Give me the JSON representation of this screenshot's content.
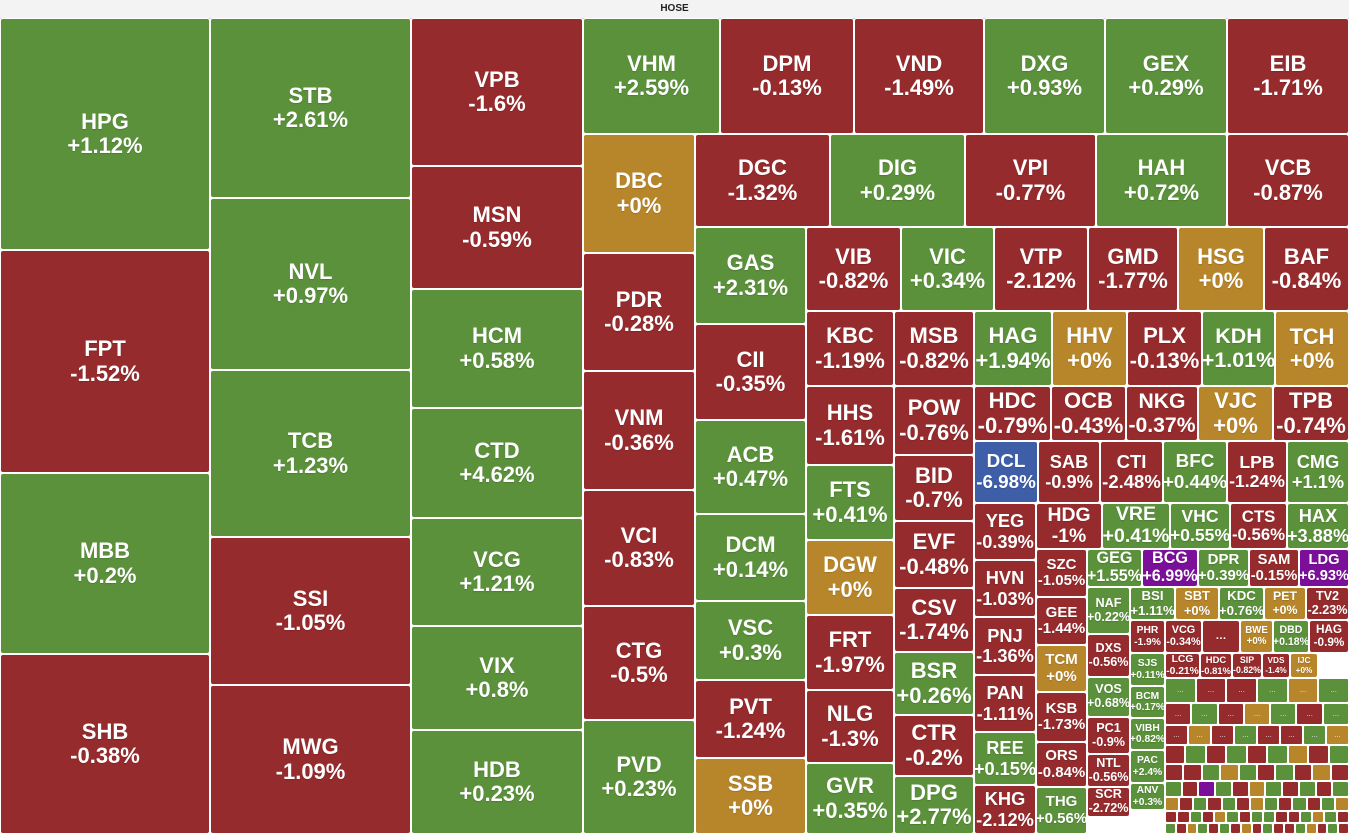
{
  "exchange": "HOSE",
  "colors": {
    "up": "#5b913b",
    "down": "#962b2d",
    "flat": "#b8862a",
    "floor": "#3e5ea8",
    "ceiling": "#7b0f9a"
  },
  "chart_data": {
    "type": "treemap",
    "items": [
      {
        "ticker": "HPG",
        "change": "+1.12%",
        "status": "up"
      },
      {
        "ticker": "FPT",
        "change": "-1.52%",
        "status": "down"
      },
      {
        "ticker": "MBB",
        "change": "+0.2%",
        "status": "up"
      },
      {
        "ticker": "SHB",
        "change": "-0.38%",
        "status": "down"
      },
      {
        "ticker": "STB",
        "change": "+2.61%",
        "status": "up"
      },
      {
        "ticker": "NVL",
        "change": "+0.97%",
        "status": "up"
      },
      {
        "ticker": "TCB",
        "change": "+1.23%",
        "status": "up"
      },
      {
        "ticker": "SSI",
        "change": "-1.05%",
        "status": "down"
      },
      {
        "ticker": "MWG",
        "change": "-1.09%",
        "status": "down"
      },
      {
        "ticker": "VPB",
        "change": "-1.6%",
        "status": "down"
      },
      {
        "ticker": "MSN",
        "change": "-0.59%",
        "status": "down"
      },
      {
        "ticker": "HCM",
        "change": "+0.58%",
        "status": "up"
      },
      {
        "ticker": "CTD",
        "change": "+4.62%",
        "status": "up"
      },
      {
        "ticker": "VCG",
        "change": "+1.21%",
        "status": "up"
      },
      {
        "ticker": "VIX",
        "change": "+0.8%",
        "status": "up"
      },
      {
        "ticker": "HDB",
        "change": "+0.23%",
        "status": "up"
      },
      {
        "ticker": "VHM",
        "change": "+2.59%",
        "status": "up"
      },
      {
        "ticker": "DBC",
        "change": "+0%",
        "status": "flat"
      },
      {
        "ticker": "PDR",
        "change": "-0.28%",
        "status": "down"
      },
      {
        "ticker": "VNM",
        "change": "-0.36%",
        "status": "down"
      },
      {
        "ticker": "VCI",
        "change": "-0.83%",
        "status": "down"
      },
      {
        "ticker": "CTG",
        "change": "-0.5%",
        "status": "down"
      },
      {
        "ticker": "PVD",
        "change": "+0.23%",
        "status": "up"
      },
      {
        "ticker": "DPM",
        "change": "-0.13%",
        "status": "down"
      },
      {
        "ticker": "VND",
        "change": "-1.49%",
        "status": "down"
      },
      {
        "ticker": "DXG",
        "change": "+0.93%",
        "status": "up"
      },
      {
        "ticker": "GEX",
        "change": "+0.29%",
        "status": "up"
      },
      {
        "ticker": "EIB",
        "change": "-1.71%",
        "status": "down"
      },
      {
        "ticker": "DGC",
        "change": "-1.32%",
        "status": "down"
      },
      {
        "ticker": "DIG",
        "change": "+0.29%",
        "status": "up"
      },
      {
        "ticker": "VPI",
        "change": "-0.77%",
        "status": "down"
      },
      {
        "ticker": "HAH",
        "change": "+0.72%",
        "status": "up"
      },
      {
        "ticker": "VCB",
        "change": "-0.87%",
        "status": "down"
      },
      {
        "ticker": "GAS",
        "change": "+2.31%",
        "status": "up"
      },
      {
        "ticker": "CII",
        "change": "-0.35%",
        "status": "down"
      },
      {
        "ticker": "ACB",
        "change": "+0.47%",
        "status": "up"
      },
      {
        "ticker": "DCM",
        "change": "+0.14%",
        "status": "up"
      },
      {
        "ticker": "VSC",
        "change": "+0.3%",
        "status": "up"
      },
      {
        "ticker": "PVT",
        "change": "-1.24%",
        "status": "down"
      },
      {
        "ticker": "SSB",
        "change": "+0%",
        "status": "flat"
      },
      {
        "ticker": "VIB",
        "change": "-0.82%",
        "status": "down"
      },
      {
        "ticker": "VIC",
        "change": "+0.34%",
        "status": "up"
      },
      {
        "ticker": "VTP",
        "change": "-2.12%",
        "status": "down"
      },
      {
        "ticker": "GMD",
        "change": "-1.77%",
        "status": "down"
      },
      {
        "ticker": "HSG",
        "change": "+0%",
        "status": "flat"
      },
      {
        "ticker": "BAF",
        "change": "-0.84%",
        "status": "down"
      },
      {
        "ticker": "KBC",
        "change": "-1.19%",
        "status": "down"
      },
      {
        "ticker": "MSB",
        "change": "-0.82%",
        "status": "down"
      },
      {
        "ticker": "HHS",
        "change": "-1.61%",
        "status": "down"
      },
      {
        "ticker": "POW",
        "change": "-0.76%",
        "status": "down"
      },
      {
        "ticker": "FTS",
        "change": "+0.41%",
        "status": "up"
      },
      {
        "ticker": "BID",
        "change": "-0.7%",
        "status": "down"
      },
      {
        "ticker": "DGW",
        "change": "+0%",
        "status": "flat"
      },
      {
        "ticker": "EVF",
        "change": "-0.48%",
        "status": "down"
      },
      {
        "ticker": "FRT",
        "change": "-1.97%",
        "status": "down"
      },
      {
        "ticker": "CSV",
        "change": "-1.74%",
        "status": "down"
      },
      {
        "ticker": "BSR",
        "change": "+0.26%",
        "status": "up"
      },
      {
        "ticker": "NLG",
        "change": "-1.3%",
        "status": "down"
      },
      {
        "ticker": "CTR",
        "change": "-0.2%",
        "status": "down"
      },
      {
        "ticker": "GVR",
        "change": "+0.35%",
        "status": "up"
      },
      {
        "ticker": "DPG",
        "change": "+2.77%",
        "status": "up"
      },
      {
        "ticker": "HAG",
        "change": "+1.94%",
        "status": "up"
      },
      {
        "ticker": "HHV",
        "change": "+0%",
        "status": "flat"
      },
      {
        "ticker": "PLX",
        "change": "-0.13%",
        "status": "down"
      },
      {
        "ticker": "KDH",
        "change": "+1.01%",
        "status": "up"
      },
      {
        "ticker": "TCH",
        "change": "+0%",
        "status": "flat"
      },
      {
        "ticker": "HDC",
        "change": "-0.79%",
        "status": "down"
      },
      {
        "ticker": "OCB",
        "change": "-0.43%",
        "status": "down"
      },
      {
        "ticker": "NKG",
        "change": "-0.37%",
        "status": "down"
      },
      {
        "ticker": "VJC",
        "change": "+0%",
        "status": "flat"
      },
      {
        "ticker": "TPB",
        "change": "-0.74%",
        "status": "down"
      },
      {
        "ticker": "DCL",
        "change": "-6.98%",
        "status": "floor"
      },
      {
        "ticker": "SAB",
        "change": "-0.9%",
        "status": "down"
      },
      {
        "ticker": "CTI",
        "change": "-2.48%",
        "status": "down"
      },
      {
        "ticker": "BFC",
        "change": "+0.44%",
        "status": "up"
      },
      {
        "ticker": "LPB",
        "change": "-1.24%",
        "status": "down"
      },
      {
        "ticker": "CMG",
        "change": "+1.1%",
        "status": "up"
      },
      {
        "ticker": "YEG",
        "change": "-0.39%",
        "status": "down"
      },
      {
        "ticker": "HDG",
        "change": "-1%",
        "status": "down"
      },
      {
        "ticker": "VRE",
        "change": "+0.41%",
        "status": "up"
      },
      {
        "ticker": "VHC",
        "change": "+0.55%",
        "status": "up"
      },
      {
        "ticker": "CTS",
        "change": "-0.56%",
        "status": "down"
      },
      {
        "ticker": "HAX",
        "change": "+3.88%",
        "status": "up"
      },
      {
        "ticker": "HVN",
        "change": "-1.03%",
        "status": "down"
      },
      {
        "ticker": "SZC",
        "change": "-1.05%",
        "status": "down"
      },
      {
        "ticker": "GEG",
        "change": "+1.55%",
        "status": "up"
      },
      {
        "ticker": "BCG",
        "change": "+6.99%",
        "status": "ceiling"
      },
      {
        "ticker": "DPR",
        "change": "+0.39%",
        "status": "up"
      },
      {
        "ticker": "SAM",
        "change": "-0.15%",
        "status": "down"
      },
      {
        "ticker": "LDG",
        "change": "+6.93%",
        "status": "ceiling"
      },
      {
        "ticker": "PNJ",
        "change": "-1.36%",
        "status": "down"
      },
      {
        "ticker": "GEE",
        "change": "-1.44%",
        "status": "down"
      },
      {
        "ticker": "NAF",
        "change": "+0.22%",
        "status": "up"
      },
      {
        "ticker": "BSI",
        "change": "+1.11%",
        "status": "up"
      },
      {
        "ticker": "SBT",
        "change": "+0%",
        "status": "flat"
      },
      {
        "ticker": "KDC",
        "change": "+0.76%",
        "status": "up"
      },
      {
        "ticker": "PET",
        "change": "+0%",
        "status": "flat"
      },
      {
        "ticker": "TV2",
        "change": "-2.23%",
        "status": "down"
      },
      {
        "ticker": "PAN",
        "change": "-1.11%",
        "status": "down"
      },
      {
        "ticker": "TCM",
        "change": "+0%",
        "status": "flat"
      },
      {
        "ticker": "DXS",
        "change": "-0.56%",
        "status": "down"
      },
      {
        "ticker": "PHR",
        "change": "-1.9%",
        "status": "down"
      },
      {
        "ticker": "VCG",
        "change": "-0.34%",
        "status": "down"
      },
      {
        "ticker": "…",
        "change": "",
        "status": "down"
      },
      {
        "ticker": "BWE",
        "change": "+0%",
        "status": "flat"
      },
      {
        "ticker": "DBD",
        "change": "+0.18%",
        "status": "up"
      },
      {
        "ticker": "HAG",
        "change": "-0.9%",
        "status": "down"
      },
      {
        "ticker": "KSB",
        "change": "-1.73%",
        "status": "down"
      },
      {
        "ticker": "VOS",
        "change": "+0.68%",
        "status": "up"
      },
      {
        "ticker": "SJS",
        "change": "+0.11%",
        "status": "up"
      },
      {
        "ticker": "LCG",
        "change": "-0.21%",
        "status": "down"
      },
      {
        "ticker": "HDC",
        "change": "-0.81%",
        "status": "down"
      },
      {
        "ticker": "SIP",
        "change": "-0.82%",
        "status": "down"
      },
      {
        "ticker": "VDS",
        "change": "-1.4%",
        "status": "down"
      },
      {
        "ticker": "IJC",
        "change": "+0%",
        "status": "flat"
      },
      {
        "ticker": "REE",
        "change": "+0.15%",
        "status": "up"
      },
      {
        "ticker": "ORS",
        "change": "-0.84%",
        "status": "down"
      },
      {
        "ticker": "PC1",
        "change": "-0.9%",
        "status": "down"
      },
      {
        "ticker": "BCM",
        "change": "+0.17%",
        "status": "up"
      },
      {
        "ticker": "VIBH",
        "change": "+0.82%",
        "status": "up"
      },
      {
        "ticker": "NTL",
        "change": "-0.56%",
        "status": "down"
      },
      {
        "ticker": "PAC",
        "change": "+2.4%",
        "status": "up"
      },
      {
        "ticker": "KHG",
        "change": "-2.12%",
        "status": "down"
      },
      {
        "ticker": "THG",
        "change": "+0.56%",
        "status": "up"
      },
      {
        "ticker": "SCR",
        "change": "-2.72%",
        "status": "down"
      },
      {
        "ticker": "ANV",
        "change": "+0.3%",
        "status": "up"
      }
    ]
  },
  "small_tiles_status": [
    "up",
    "down",
    "down",
    "up",
    "flat",
    "up",
    "down",
    "up",
    "down",
    "flat",
    "up",
    "down",
    "up",
    "down",
    "flat",
    "down",
    "up",
    "down",
    "down",
    "up",
    "flat",
    "down",
    "up",
    "down",
    "up",
    "down",
    "up",
    "flat",
    "down",
    "up",
    "down",
    "down",
    "up",
    "flat",
    "up",
    "down",
    "up",
    "down",
    "flat",
    "down",
    "up",
    "down",
    "ceiling",
    "up",
    "down",
    "flat",
    "up",
    "down",
    "up",
    "down",
    "up",
    "flat",
    "down",
    "up",
    "down",
    "up",
    "down",
    "flat",
    "up",
    "down",
    "up",
    "down",
    "up",
    "flat",
    "down",
    "down",
    "up",
    "down",
    "flat",
    "up",
    "down",
    "up"
  ],
  "more_label": "…"
}
